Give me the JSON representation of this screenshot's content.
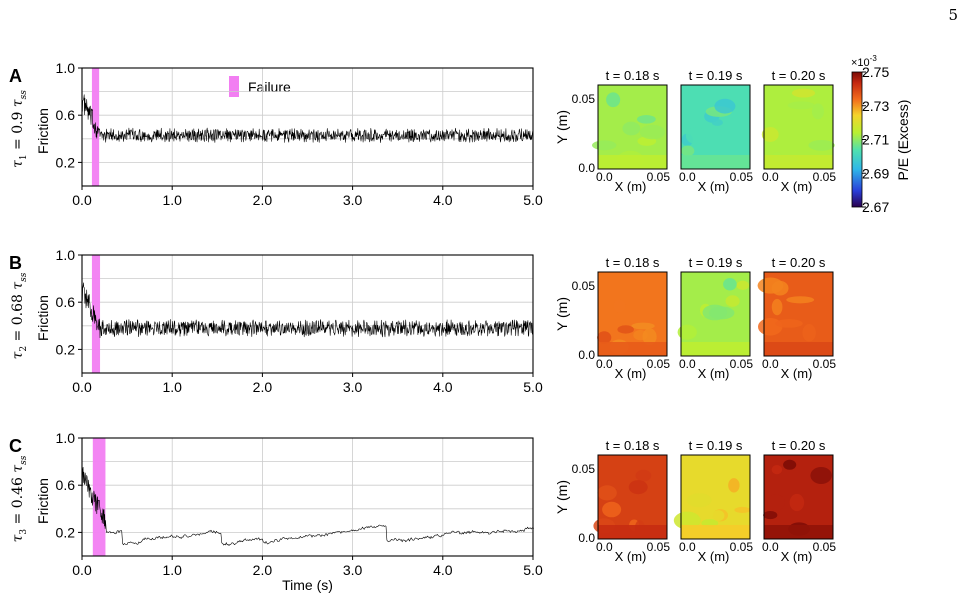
{
  "page_number": "5",
  "colors": {
    "failure": "#f27ef2",
    "trace": "#000000",
    "grid": "#cccccc"
  },
  "legend": {
    "failure_label": "Failure"
  },
  "common_axes": {
    "x_label": "Time (s)",
    "y_label": "Friction",
    "x_ticks": [
      "0.0",
      "1.0",
      "2.0",
      "3.0",
      "4.0",
      "5.0"
    ],
    "y_ticks": [
      "0.2",
      "0.6",
      "1.0"
    ],
    "map_x_label": "X (m)",
    "map_y_label": "Y (m)",
    "map_x_ticks": [
      "0.0",
      "0.05"
    ],
    "map_y_ticks": [
      "0.0",
      "0.05"
    ]
  },
  "colorbar": {
    "label": "P/E (Excess)",
    "multiplier": "×10",
    "exponent": "-3",
    "ticks": [
      "2.75",
      "2.73",
      "2.71",
      "2.69",
      "2.67"
    ],
    "range": [
      2.67,
      2.75
    ]
  },
  "chart_data": [
    {
      "type": "line",
      "panel": "A",
      "y_label_math": {
        "tau": "τ",
        "sub": "1",
        "eq": "= 0.9",
        "tau2": "τ",
        "sub2": "ss"
      },
      "xlim": [
        0,
        5
      ],
      "ylim": [
        0,
        1
      ],
      "grid": true,
      "failure_window": [
        0.11,
        0.19
      ],
      "transient": {
        "t_end": 0.2,
        "start": 0.72
      },
      "steady": {
        "mean": 0.43,
        "spread": 0.05,
        "kind": "oscillating"
      },
      "snapshots": [
        {
          "t": "t = 0.18 s",
          "level": 2.712
        },
        {
          "t": "t = 0.19 s",
          "level": 2.703
        },
        {
          "t": "t = 0.20 s",
          "level": 2.713
        }
      ]
    },
    {
      "type": "line",
      "panel": "B",
      "y_label_math": {
        "tau": "τ",
        "sub": "2",
        "eq": "= 0.68",
        "tau2": "τ",
        "sub2": "ss"
      },
      "xlim": [
        0,
        5
      ],
      "ylim": [
        0,
        1
      ],
      "grid": true,
      "failure_window": [
        0.11,
        0.2
      ],
      "transient": {
        "t_end": 0.2,
        "start": 0.7
      },
      "steady": {
        "mean": 0.38,
        "spread": 0.06,
        "kind": "oscillating"
      },
      "snapshots": [
        {
          "t": "t = 0.18 s",
          "level": 2.733
        },
        {
          "t": "t = 0.19 s",
          "level": 2.712
        },
        {
          "t": "t = 0.20 s",
          "level": 2.736
        }
      ]
    },
    {
      "type": "line",
      "panel": "C",
      "y_label_math": {
        "tau": "τ",
        "sub": "3",
        "eq": "= 0.46",
        "tau2": "τ",
        "sub2": "ss"
      },
      "xlim": [
        0,
        5
      ],
      "ylim": [
        0,
        1
      ],
      "grid": true,
      "failure_window": [
        0.12,
        0.26
      ],
      "transient": {
        "t_end": 0.26,
        "start": 0.68
      },
      "steady": {
        "mean": 0.28,
        "spread": 0.1,
        "kind": "stick-slip"
      },
      "snapshots": [
        {
          "t": "t = 0.18 s",
          "level": 2.74
        },
        {
          "t": "t = 0.19 s",
          "level": 2.722
        },
        {
          "t": "t = 0.20 s",
          "level": 2.745
        }
      ]
    }
  ]
}
